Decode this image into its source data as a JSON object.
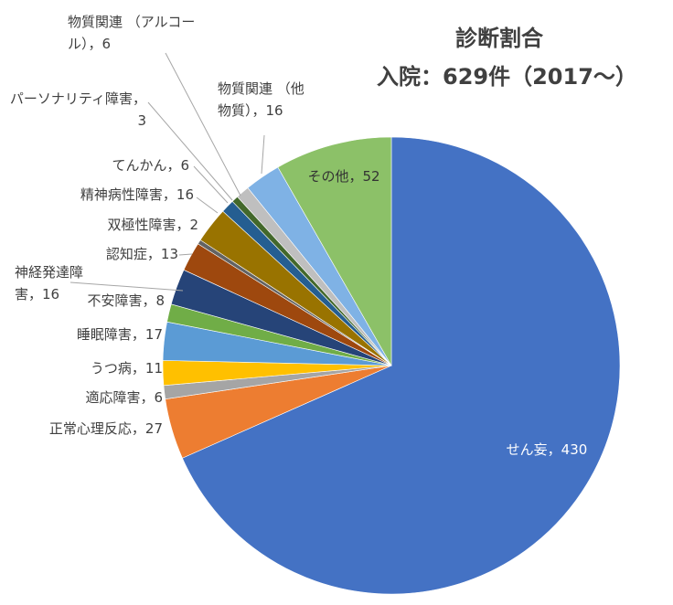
{
  "chart_data": {
    "type": "pie",
    "title": "診断割合",
    "subtitle": "入院：629件（2017〜）",
    "start_angle_deg": 0,
    "direction": "clockwise",
    "slices": [
      {
        "label": "せん妄",
        "value": 430,
        "display": "せん妄，430",
        "color": "#4472C4"
      },
      {
        "label": "正常心理反応",
        "value": 27,
        "display": "正常心理反応，27",
        "color": "#ED7D31"
      },
      {
        "label": "適応障害",
        "value": 6,
        "display": "適応障害，6",
        "color": "#A5A5A5"
      },
      {
        "label": "うつ病",
        "value": 11,
        "display": "うつ病，11",
        "color": "#FFC000"
      },
      {
        "label": "睡眠障害",
        "value": 17,
        "display": "睡眠障害，17",
        "color": "#5B9BD5"
      },
      {
        "label": "不安障害",
        "value": 8,
        "display": "不安障害，8",
        "color": "#70AD47"
      },
      {
        "label": "神経発達障害",
        "value": 16,
        "display_lines": [
          "神経発達障",
          "害，16"
        ],
        "color": "#264478"
      },
      {
        "label": "認知症",
        "value": 13,
        "display": "認知症，13",
        "color": "#9E480E"
      },
      {
        "label": "双極性障害",
        "value": 2,
        "display": "双極性障害，2",
        "color": "#636363"
      },
      {
        "label": "精神病性障害",
        "value": 16,
        "display": "精神病性障害，16",
        "color": "#997300"
      },
      {
        "label": "てんかん",
        "value": 6,
        "display": "てんかん，6",
        "color": "#255E91"
      },
      {
        "label": "パーソナリティ障害",
        "value": 3,
        "display_lines": [
          "パーソナリティ障害，",
          "3"
        ],
        "color": "#43682B"
      },
      {
        "label": "物質関連（アルコール）",
        "value": 6,
        "display_lines": [
          "物質関連 （アルコー",
          "ル），6"
        ],
        "color": "#BFBFBF"
      },
      {
        "label": "物質関連（他物質）",
        "value": 16,
        "display_lines": [
          "物質関連 （他",
          "物質），16"
        ],
        "color": "#7FB2E5"
      },
      {
        "label": "その他",
        "value": 52,
        "display": "その他，52",
        "color": "#8CC168"
      }
    ]
  }
}
